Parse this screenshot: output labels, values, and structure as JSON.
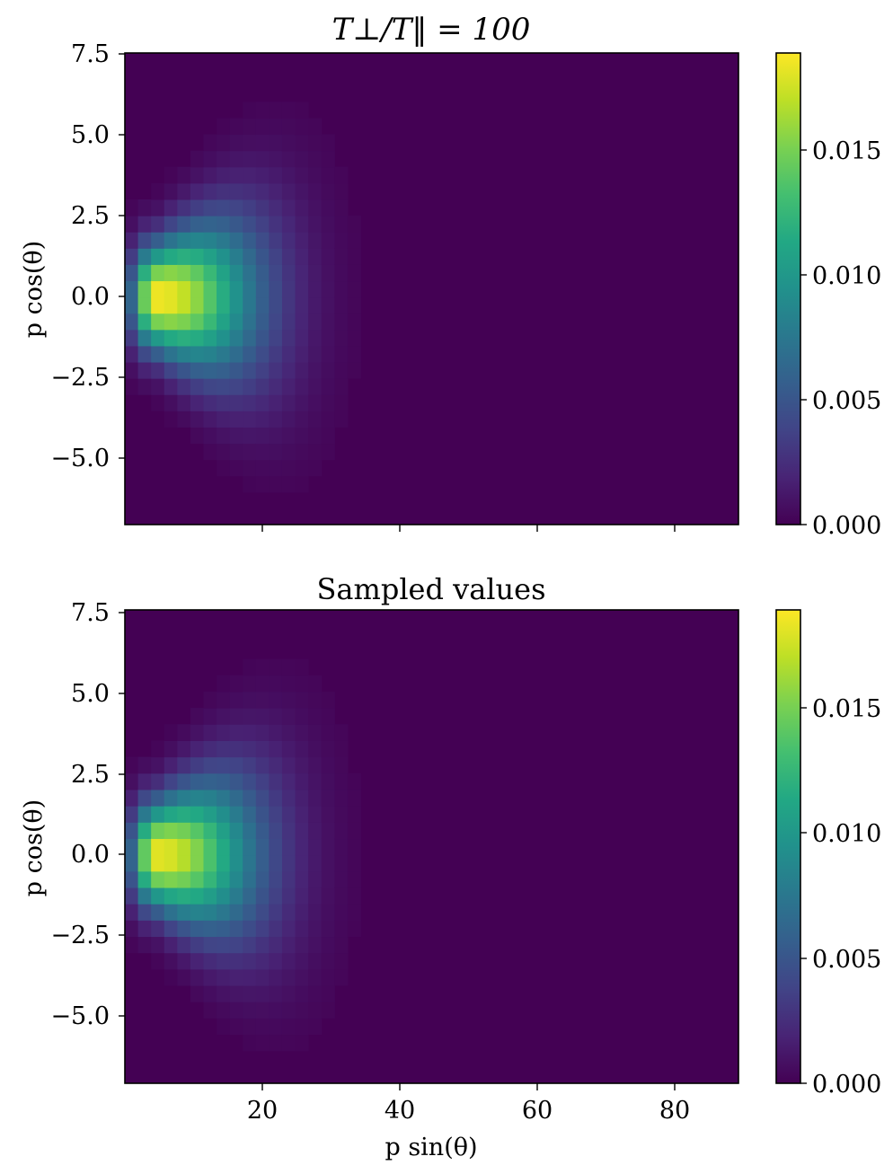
{
  "chart_data": [
    {
      "type": "heatmap",
      "title": "T⊥/T‖ = 100",
      "xlabel": "",
      "ylabel": "p cos(θ)",
      "xlim": [
        0,
        89
      ],
      "ylim": [
        -7,
        7.5
      ],
      "x_ticks": [
        "20",
        "40",
        "60",
        "80"
      ],
      "x_tick_values": [
        20,
        40,
        60,
        80
      ],
      "x_tick_labels_visible": false,
      "y_ticks": [
        "7.5",
        "5.0",
        "2.5",
        "0.0",
        "−2.5",
        "−5.0"
      ],
      "y_tick_values": [
        7.5,
        5.0,
        2.5,
        0.0,
        -2.5,
        -5.0
      ],
      "colormap": "viridis",
      "colorbar": {
        "range": [
          0,
          0.0189
        ],
        "ticks": [
          "0.000",
          "0.005",
          "0.010",
          "0.015"
        ],
        "tick_values": [
          0,
          0.005,
          0.01,
          0.015
        ]
      },
      "distribution": {
        "peak_x": 4.5,
        "peak_y": 0.0,
        "peak_value": 0.0189,
        "sigma_x_left": 2.4,
        "sigma_x_right": 10.0,
        "sigma_y": 1.1,
        "sigma_y_growth_per_x": 0.08
      },
      "grid": false
    },
    {
      "type": "heatmap",
      "title": "Sampled values",
      "xlabel": "p sin(θ)",
      "ylabel": "p cos(θ)",
      "xlim": [
        0,
        89
      ],
      "ylim": [
        -7,
        7.5
      ],
      "x_ticks": [
        "20",
        "40",
        "60",
        "80"
      ],
      "x_tick_values": [
        20,
        40,
        60,
        80
      ],
      "x_tick_labels_visible": true,
      "y_ticks": [
        "7.5",
        "5.0",
        "2.5",
        "0.0",
        "−2.5",
        "−5.0"
      ],
      "y_tick_values": [
        7.5,
        5.0,
        2.5,
        0.0,
        -2.5,
        -5.0
      ],
      "colormap": "viridis",
      "colorbar": {
        "range": [
          0,
          0.0189
        ],
        "ticks": [
          "0.000",
          "0.005",
          "0.010",
          "0.015"
        ],
        "tick_values": [
          0,
          0.005,
          0.01,
          0.015
        ]
      },
      "distribution": {
        "peak_x": 4.5,
        "peak_y": 0.0,
        "peak_value": 0.0185,
        "sigma_x_left": 2.4,
        "sigma_x_right": 10.0,
        "sigma_y": 1.1,
        "sigma_y_growth_per_x": 0.08
      },
      "grid": false
    }
  ]
}
